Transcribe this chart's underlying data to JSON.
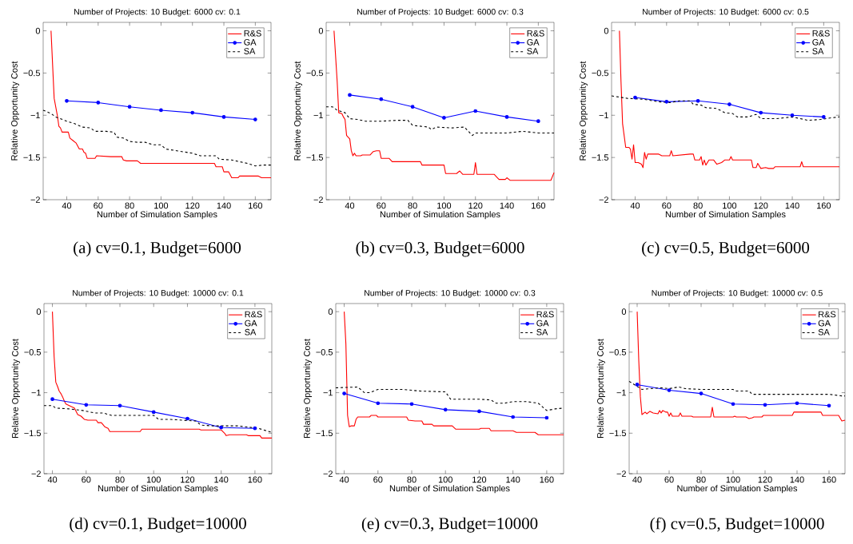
{
  "chart_data": [
    {
      "type": "line",
      "title": "Number of Projects: 10  Budget: 6000  cv: 0.1",
      "xlabel": "Number of Simulation Samples",
      "ylabel": "Relative Opportunity Cost",
      "annotations": [
        "(a)  cv=0.1, Budget=6000"
      ],
      "xlim": [
        25,
        170
      ],
      "ylim": [
        -2,
        0.1
      ],
      "xticks": [
        40,
        60,
        80,
        100,
        120,
        140,
        160
      ],
      "yticks": [
        0,
        {
          "value": -0.5,
          "label": "−0.5"
        },
        {
          "value": -1,
          "label": "−1"
        },
        {
          "value": -1.5,
          "label": "−1.5"
        },
        {
          "value": -2,
          "label": "−2"
        }
      ],
      "legend": "top right",
      "grid": false,
      "series": [
        {
          "name": "R&S",
          "color": "#ff0000",
          "marker": "none",
          "line_style": "solid",
          "x": [
            30,
            32,
            34,
            35,
            36,
            37,
            40,
            41,
            42,
            44,
            46,
            48,
            50,
            51,
            52,
            53,
            58,
            59,
            68,
            75,
            76,
            78,
            85,
            87,
            134,
            135,
            139,
            140,
            143,
            145,
            149,
            150,
            162,
            164,
            170
          ],
          "values": [
            0,
            -0.8,
            -1.0,
            -1.13,
            -1.15,
            -1.2,
            -1.2,
            -1.2,
            -1.27,
            -1.3,
            -1.33,
            -1.4,
            -1.4,
            -1.44,
            -1.45,
            -1.51,
            -1.51,
            -1.48,
            -1.49,
            -1.49,
            -1.53,
            -1.54,
            -1.54,
            -1.57,
            -1.57,
            -1.61,
            -1.61,
            -1.67,
            -1.67,
            -1.74,
            -1.74,
            -1.72,
            -1.72,
            -1.74,
            -1.74
          ]
        },
        {
          "name": "GA",
          "color": "#0000ff",
          "marker": "circle",
          "line_style": "solid",
          "x": [
            40,
            60,
            80,
            100,
            120,
            140,
            160
          ],
          "values": [
            -0.83,
            -0.85,
            -0.9,
            -0.94,
            -0.97,
            -1.02,
            -1.05
          ]
        },
        {
          "name": "SA",
          "color": "#000000",
          "marker": "none",
          "line_style": "dashed",
          "x": [
            25,
            30,
            33,
            40,
            45,
            50,
            55,
            58,
            65,
            70,
            72,
            76,
            80,
            85,
            90,
            95,
            100,
            103,
            110,
            120,
            125,
            135,
            137,
            145,
            155,
            160,
            165,
            170
          ],
          "values": [
            -0.94,
            -0.98,
            -1.02,
            -1.07,
            -1.1,
            -1.14,
            -1.15,
            -1.19,
            -1.19,
            -1.2,
            -1.26,
            -1.27,
            -1.31,
            -1.32,
            -1.32,
            -1.35,
            -1.35,
            -1.4,
            -1.42,
            -1.45,
            -1.48,
            -1.48,
            -1.52,
            -1.53,
            -1.57,
            -1.6,
            -1.59,
            -1.59
          ]
        }
      ]
    },
    {
      "type": "line",
      "title": "Number of Projects: 10  Budget: 6000  cv: 0.3",
      "xlabel": "Number of Simulation Samples",
      "ylabel": "Relative Opportunity Cost",
      "annotations": [
        "(b)  cv=0.3, Budget=6000"
      ],
      "xlim": [
        25,
        170
      ],
      "ylim": [
        -2,
        0.1
      ],
      "xticks": [
        40,
        60,
        80,
        100,
        120,
        140,
        160
      ],
      "yticks": [
        0,
        {
          "value": -0.5,
          "label": "−0.5"
        },
        {
          "value": -1,
          "label": "−1"
        },
        {
          "value": -1.5,
          "label": "−1.5"
        },
        {
          "value": -2,
          "label": "−2"
        }
      ],
      "legend": "top right",
      "grid": false,
      "series": [
        {
          "name": "R&S",
          "color": "#ff0000",
          "marker": "none",
          "line_style": "solid",
          "x": [
            30,
            31,
            32,
            33,
            35,
            36,
            37,
            38,
            40,
            41,
            42,
            43,
            44,
            47,
            48,
            53,
            55,
            57,
            59,
            60,
            65,
            67,
            85,
            86,
            100,
            101,
            108,
            110,
            112,
            119,
            120,
            121,
            132,
            134,
            135,
            139,
            140,
            142,
            168,
            170
          ],
          "values": [
            0,
            -0.3,
            -0.6,
            -0.97,
            -0.98,
            -1.02,
            -1.05,
            -1.24,
            -1.28,
            -1.42,
            -1.48,
            -1.45,
            -1.48,
            -1.48,
            -1.47,
            -1.47,
            -1.43,
            -1.42,
            -1.42,
            -1.51,
            -1.51,
            -1.55,
            -1.55,
            -1.59,
            -1.59,
            -1.69,
            -1.69,
            -1.66,
            -1.7,
            -1.7,
            -1.56,
            -1.7,
            -1.7,
            -1.74,
            -1.76,
            -1.76,
            -1.74,
            -1.77,
            -1.77,
            -1.68
          ]
        },
        {
          "name": "GA",
          "color": "#0000ff",
          "marker": "circle",
          "line_style": "solid",
          "x": [
            40,
            60,
            80,
            100,
            120,
            140,
            160
          ],
          "values": [
            -0.76,
            -0.81,
            -0.9,
            -1.03,
            -0.95,
            -1.02,
            -1.07
          ]
        },
        {
          "name": "SA",
          "color": "#000000",
          "marker": "none",
          "line_style": "dashed",
          "x": [
            25,
            29,
            32,
            37,
            40,
            45,
            50,
            60,
            70,
            77,
            80,
            90,
            92,
            95,
            105,
            113,
            118,
            120,
            140,
            150,
            160,
            170
          ],
          "values": [
            -0.9,
            -0.9,
            -0.94,
            -0.97,
            -1.04,
            -1.05,
            -1.07,
            -1.07,
            -1.06,
            -1.06,
            -1.12,
            -1.14,
            -1.17,
            -1.14,
            -1.15,
            -1.14,
            -1.24,
            -1.21,
            -1.21,
            -1.19,
            -1.21,
            -1.21
          ]
        }
      ]
    },
    {
      "type": "line",
      "title": "Number of Projects: 10  Budget: 6000  cv: 0.5",
      "xlabel": "Number of Simulation Samples",
      "ylabel": "Relative Opportunity Cost",
      "annotations": [
        "(c)  cv=0.5, Budget=6000"
      ],
      "xlim": [
        25,
        170
      ],
      "ylim": [
        -2,
        0.1
      ],
      "xticks": [
        40,
        60,
        80,
        100,
        120,
        140,
        160
      ],
      "yticks": [
        0,
        {
          "value": -0.5,
          "label": "−0.5"
        },
        {
          "value": -1,
          "label": "−1"
        },
        {
          "value": -1.5,
          "label": "−1.5"
        },
        {
          "value": -2,
          "label": "−2"
        }
      ],
      "legend": "top right",
      "grid": false,
      "series": [
        {
          "name": "R&S",
          "color": "#ff0000",
          "marker": "none",
          "line_style": "solid",
          "x": [
            30,
            31,
            32,
            34,
            36,
            37,
            38,
            39,
            40,
            42,
            44,
            45,
            46,
            47,
            48,
            55,
            57,
            62,
            63,
            64,
            75,
            77,
            78,
            81,
            82,
            83,
            84,
            85,
            87,
            90,
            92,
            95,
            97,
            100,
            101,
            102,
            114,
            115,
            117,
            118,
            120,
            123,
            125,
            128,
            129,
            145,
            146,
            147,
            170
          ],
          "values": [
            0,
            -0.6,
            -1.1,
            -1.38,
            -1.38,
            -1.4,
            -1.52,
            -1.35,
            -1.56,
            -1.56,
            -1.58,
            -1.62,
            -1.44,
            -1.52,
            -1.46,
            -1.46,
            -1.48,
            -1.48,
            -1.42,
            -1.48,
            -1.46,
            -1.46,
            -1.53,
            -1.53,
            -1.49,
            -1.59,
            -1.53,
            -1.59,
            -1.53,
            -1.53,
            -1.58,
            -1.56,
            -1.53,
            -1.53,
            -1.49,
            -1.53,
            -1.53,
            -1.62,
            -1.62,
            -1.57,
            -1.63,
            -1.62,
            -1.63,
            -1.63,
            -1.61,
            -1.61,
            -1.55,
            -1.61,
            -1.61
          ]
        },
        {
          "name": "GA",
          "color": "#0000ff",
          "marker": "circle",
          "line_style": "solid",
          "x": [
            40,
            60,
            80,
            100,
            120,
            140,
            160
          ],
          "values": [
            -0.79,
            -0.84,
            -0.83,
            -0.87,
            -0.97,
            -1.0,
            -1.02
          ]
        },
        {
          "name": "SA",
          "color": "#000000",
          "marker": "none",
          "line_style": "dashed",
          "x": [
            25,
            35,
            45,
            55,
            62,
            68,
            75,
            77,
            82,
            85,
            92,
            97,
            102,
            105,
            112,
            115,
            117,
            120,
            130,
            140,
            150,
            158,
            165,
            170
          ],
          "values": [
            -0.77,
            -0.8,
            -0.81,
            -0.84,
            -0.85,
            -0.83,
            -0.83,
            -0.87,
            -0.88,
            -0.91,
            -0.92,
            -0.97,
            -0.98,
            -1.02,
            -1.02,
            -1.0,
            -0.99,
            -1.04,
            -1.04,
            -1.02,
            -1.06,
            -1.05,
            -1.03,
            -1.02
          ]
        }
      ]
    },
    {
      "type": "line",
      "title": "Number of Projects: 10  Budget: 10000  cv: 0.1",
      "xlabel": "Number of Simulation Samples",
      "ylabel": "Relative Opportunity Cost",
      "annotations": [
        "(d)  cv=0.1, Budget=10000"
      ],
      "xlim": [
        35,
        170
      ],
      "ylim": [
        -2,
        0.1
      ],
      "xticks": [
        40,
        60,
        80,
        100,
        120,
        140,
        160
      ],
      "yticks": [
        0,
        {
          "value": -0.5,
          "label": "−0.5"
        },
        {
          "value": -1,
          "label": "−1"
        },
        {
          "value": -1.5,
          "label": "−1.5"
        },
        {
          "value": -2,
          "label": "−2"
        }
      ],
      "legend": "top right",
      "grid": false,
      "series": [
        {
          "name": "R&S",
          "color": "#ff0000",
          "marker": "none",
          "line_style": "solid",
          "x": [
            40,
            41,
            42,
            43,
            44,
            45,
            46,
            47,
            48,
            50,
            53,
            55,
            57,
            59,
            61,
            66,
            67,
            69,
            71,
            73,
            74,
            92,
            93,
            127,
            128,
            140,
            142,
            143,
            145,
            155,
            156,
            163,
            164,
            170
          ],
          "values": [
            0,
            -0.55,
            -0.87,
            -0.92,
            -0.98,
            -1.01,
            -1.05,
            -1.1,
            -1.14,
            -1.16,
            -1.19,
            -1.27,
            -1.29,
            -1.33,
            -1.34,
            -1.34,
            -1.37,
            -1.37,
            -1.42,
            -1.44,
            -1.48,
            -1.48,
            -1.45,
            -1.45,
            -1.46,
            -1.46,
            -1.5,
            -1.53,
            -1.52,
            -1.52,
            -1.53,
            -1.53,
            -1.56,
            -1.56
          ]
        },
        {
          "name": "GA",
          "color": "#0000ff",
          "marker": "circle",
          "line_style": "solid",
          "x": [
            40,
            60,
            80,
            100,
            120,
            140,
            160
          ],
          "values": [
            -1.08,
            -1.15,
            -1.16,
            -1.24,
            -1.32,
            -1.43,
            -1.44
          ]
        },
        {
          "name": "SA",
          "color": "#000000",
          "marker": "none",
          "line_style": "dashed",
          "x": [
            35,
            40,
            42,
            50,
            58,
            65,
            70,
            75,
            90,
            100,
            103,
            110,
            125,
            128,
            135,
            150,
            162,
            170
          ],
          "values": [
            -1.16,
            -1.16,
            -1.19,
            -1.2,
            -1.22,
            -1.25,
            -1.25,
            -1.28,
            -1.28,
            -1.28,
            -1.33,
            -1.33,
            -1.35,
            -1.4,
            -1.41,
            -1.41,
            -1.44,
            -1.49
          ]
        }
      ]
    },
    {
      "type": "line",
      "title": "Number of Projects: 10  Budget: 10000  cv: 0.3",
      "xlabel": "Number of Simulation Samples",
      "ylabel": "Relative Opportunity Cost",
      "annotations": [
        "(e)  cv=0.3, Budget=10000"
      ],
      "xlim": [
        35,
        170
      ],
      "ylim": [
        -2,
        0.1
      ],
      "xticks": [
        40,
        60,
        80,
        100,
        120,
        140,
        160
      ],
      "yticks": [
        0,
        {
          "value": -0.5,
          "label": "−0.5"
        },
        {
          "value": -1,
          "label": "−1"
        },
        {
          "value": -1.5,
          "label": "−1.5"
        },
        {
          "value": -2,
          "label": "−2"
        }
      ],
      "legend": "top right",
      "grid": false,
      "series": [
        {
          "name": "R&S",
          "color": "#ff0000",
          "marker": "none",
          "line_style": "solid",
          "x": [
            40,
            41,
            42,
            43,
            44,
            46,
            47,
            48,
            55,
            56,
            59,
            60,
            77,
            78,
            82,
            86,
            87,
            92,
            93,
            104,
            106,
            120,
            121,
            126,
            127,
            140,
            142,
            153,
            155,
            170
          ],
          "values": [
            0,
            -0.4,
            -1.28,
            -1.42,
            -1.41,
            -1.41,
            -1.33,
            -1.3,
            -1.3,
            -1.28,
            -1.28,
            -1.3,
            -1.3,
            -1.34,
            -1.35,
            -1.35,
            -1.39,
            -1.39,
            -1.41,
            -1.41,
            -1.45,
            -1.45,
            -1.44,
            -1.44,
            -1.47,
            -1.47,
            -1.49,
            -1.49,
            -1.52,
            -1.52
          ]
        },
        {
          "name": "GA",
          "color": "#0000ff",
          "marker": "circle",
          "line_style": "solid",
          "x": [
            40,
            60,
            80,
            100,
            120,
            140,
            160
          ],
          "values": [
            -1.01,
            -1.13,
            -1.14,
            -1.21,
            -1.23,
            -1.3,
            -1.31
          ]
        },
        {
          "name": "SA",
          "color": "#000000",
          "marker": "none",
          "line_style": "dashed",
          "x": [
            35,
            48,
            52,
            55,
            60,
            75,
            80,
            85,
            100,
            103,
            120,
            127,
            130,
            135,
            140,
            148,
            155,
            160,
            165,
            170
          ],
          "values": [
            -0.94,
            -0.93,
            -1.0,
            -1.0,
            -0.96,
            -0.96,
            -0.97,
            -0.98,
            -0.99,
            -1.08,
            -1.08,
            -1.09,
            -1.13,
            -1.13,
            -1.11,
            -1.11,
            -1.13,
            -1.22,
            -1.2,
            -1.19
          ]
        }
      ]
    },
    {
      "type": "line",
      "title": "Number of Projects: 10  Budget: 10000  cv: 0.5",
      "xlabel": "Number of Simulation Samples",
      "ylabel": "Relative Opportunity Cost",
      "annotations": [
        "(f)  cv=0.5, Budget=10000"
      ],
      "xlim": [
        35,
        170
      ],
      "ylim": [
        -2,
        0.1
      ],
      "xticks": [
        40,
        60,
        80,
        100,
        120,
        140,
        160
      ],
      "yticks": [
        0,
        {
          "value": -0.5,
          "label": "−0.5"
        },
        {
          "value": -1,
          "label": "−1"
        },
        {
          "value": -1.5,
          "label": "−1.5"
        },
        {
          "value": -2,
          "label": "−2"
        }
      ],
      "legend": "top right",
      "grid": false,
      "series": [
        {
          "name": "R&S",
          "color": "#ff0000",
          "marker": "none",
          "line_style": "solid",
          "x": [
            40,
            41,
            42,
            43,
            45,
            46,
            48,
            50,
            53,
            54,
            55,
            56,
            58,
            59,
            60,
            61,
            62,
            66,
            67,
            68,
            74,
            75,
            86,
            87,
            88,
            100,
            101,
            102,
            108,
            110,
            112,
            113,
            118,
            119,
            137,
            138,
            155,
            156,
            166,
            168,
            170
          ],
          "values": [
            0,
            -0.6,
            -1.05,
            -1.27,
            -1.24,
            -1.26,
            -1.23,
            -1.25,
            -1.26,
            -1.22,
            -1.25,
            -1.22,
            -1.24,
            -1.24,
            -1.29,
            -1.25,
            -1.29,
            -1.29,
            -1.25,
            -1.29,
            -1.29,
            -1.3,
            -1.3,
            -1.18,
            -1.3,
            -1.3,
            -1.29,
            -1.3,
            -1.3,
            -1.32,
            -1.31,
            -1.3,
            -1.3,
            -1.28,
            -1.28,
            -1.24,
            -1.24,
            -1.28,
            -1.28,
            -1.35,
            -1.34
          ]
        },
        {
          "name": "GA",
          "color": "#0000ff",
          "marker": "circle",
          "line_style": "solid",
          "x": [
            40,
            60,
            80,
            100,
            120,
            140,
            160
          ],
          "values": [
            -0.9,
            -0.97,
            -1.01,
            -1.14,
            -1.15,
            -1.13,
            -1.16
          ]
        },
        {
          "name": "SA",
          "color": "#000000",
          "marker": "none",
          "line_style": "dashed",
          "x": [
            35,
            43,
            48,
            55,
            60,
            66,
            70,
            80,
            100,
            102,
            110,
            112,
            130,
            140,
            160,
            168,
            170
          ],
          "values": [
            -0.86,
            -0.96,
            -0.95,
            -0.94,
            -0.95,
            -0.93,
            -0.95,
            -0.96,
            -0.96,
            -0.98,
            -0.98,
            -1.02,
            -1.02,
            -1.02,
            -1.02,
            -1.04,
            -1.04
          ]
        }
      ]
    }
  ]
}
